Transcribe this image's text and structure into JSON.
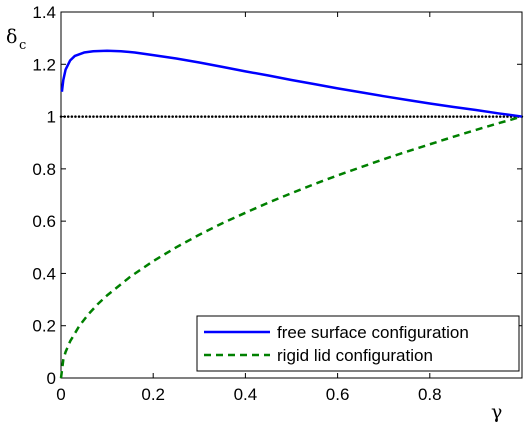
{
  "chart_data": {
    "type": "line",
    "title": "",
    "xlabel": "γ",
    "ylabel": "δ",
    "ylabel_subscript": "c",
    "xlim": [
      0,
      1
    ],
    "ylim": [
      0,
      1.4
    ],
    "x_ticks": [
      0,
      0.2,
      0.4,
      0.6,
      0.8,
      1
    ],
    "x_tick_labels": [
      "0",
      "0.2",
      "0.4",
      "0.6",
      "0.8",
      ""
    ],
    "y_ticks": [
      0,
      0.2,
      0.4,
      0.6,
      0.8,
      1,
      1.2,
      1.4
    ],
    "y_tick_labels": [
      "0",
      "0.2",
      "0.4",
      "0.6",
      "0.8",
      "1",
      "1.2",
      "1.4"
    ],
    "grid": false,
    "legend_position": "bottom-right",
    "reference_line": {
      "y": 1,
      "style": "dotted",
      "color": "#000000"
    },
    "series": [
      {
        "name": "free surface configuration",
        "color": "#0000ff",
        "style": "solid",
        "x": [
          0.002,
          0.005,
          0.01,
          0.02,
          0.03,
          0.05,
          0.07,
          0.1,
          0.13,
          0.16,
          0.2,
          0.25,
          0.3,
          0.35,
          0.4,
          0.45,
          0.5,
          0.55,
          0.6,
          0.65,
          0.7,
          0.75,
          0.8,
          0.85,
          0.9,
          0.95,
          1.0
        ],
        "y": [
          1.095,
          1.14,
          1.18,
          1.215,
          1.232,
          1.245,
          1.25,
          1.252,
          1.25,
          1.245,
          1.235,
          1.222,
          1.207,
          1.19,
          1.173,
          1.157,
          1.14,
          1.124,
          1.108,
          1.093,
          1.078,
          1.064,
          1.05,
          1.037,
          1.025,
          1.012,
          1.0
        ]
      },
      {
        "name": "rigid lid configuration",
        "color": "#008000",
        "style": "dashed",
        "x": [
          0,
          0.005,
          0.01,
          0.02,
          0.04,
          0.06,
          0.08,
          0.1,
          0.15,
          0.2,
          0.25,
          0.3,
          0.35,
          0.4,
          0.45,
          0.5,
          0.55,
          0.6,
          0.65,
          0.7,
          0.75,
          0.8,
          0.85,
          0.9,
          0.95,
          1.0
        ],
        "y": [
          0,
          0.07,
          0.1,
          0.141,
          0.2,
          0.245,
          0.283,
          0.316,
          0.387,
          0.447,
          0.5,
          0.548,
          0.592,
          0.632,
          0.671,
          0.707,
          0.742,
          0.775,
          0.806,
          0.837,
          0.866,
          0.894,
          0.922,
          0.949,
          0.975,
          1.0
        ]
      }
    ]
  }
}
